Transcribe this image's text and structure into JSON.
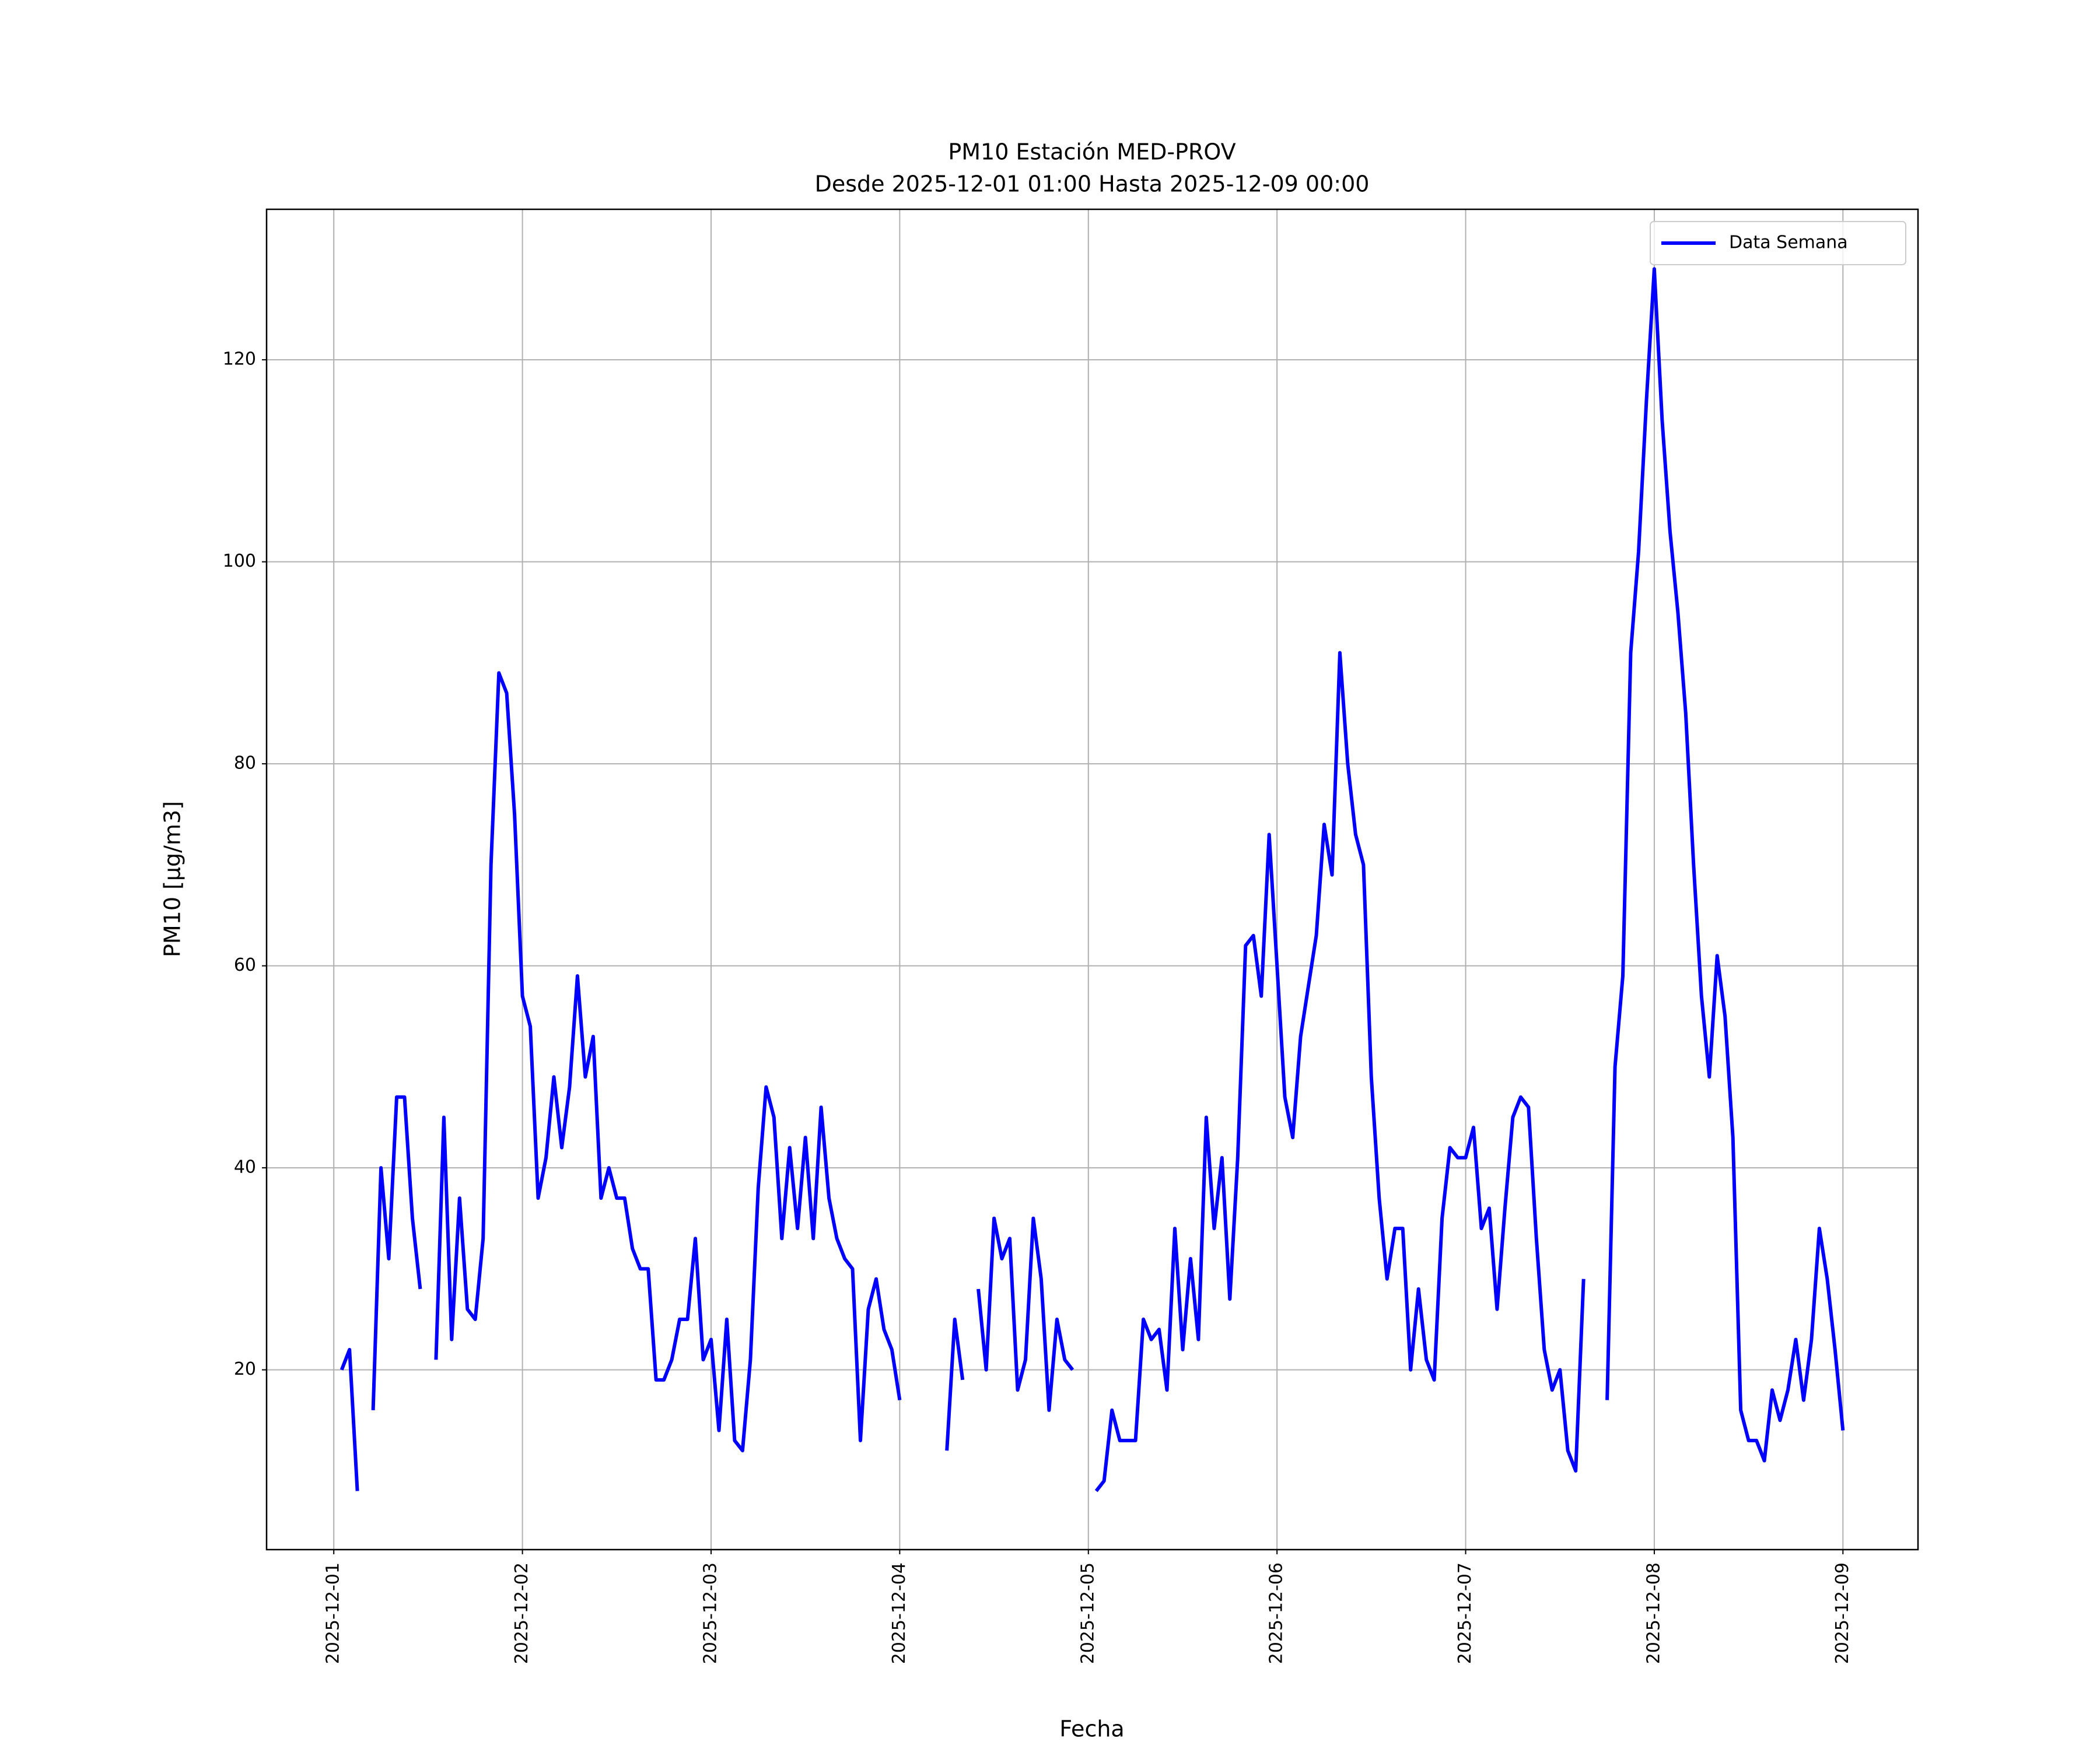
{
  "chart_data": {
    "type": "line",
    "title": "PM10 Estación MED-PROV",
    "subtitle": "Desde 2025-12-01 01:00 Hasta 2025-12-09 00:00",
    "xlabel": "Fecha",
    "ylabel": "PM10 [μg/m3]",
    "legend": "upper right",
    "grid": true,
    "xlim": [
      "2025-11-30 15:27",
      "2025-12-09 09:33"
    ],
    "xticks": [
      "2025-12-01",
      "2025-12-02",
      "2025-12-03",
      "2025-12-04",
      "2025-12-05",
      "2025-12-06",
      "2025-12-07",
      "2025-12-08",
      "2025-12-09"
    ],
    "ylim": [
      2.2,
      134.9
    ],
    "yticks": [
      20,
      40,
      60,
      80,
      100,
      120
    ],
    "x": [
      "2025-12-01 01:00",
      "2025-12-01 02:00",
      "2025-12-01 03:00",
      "2025-12-01 04:00",
      "2025-12-01 05:00",
      "2025-12-01 06:00",
      "2025-12-01 07:00",
      "2025-12-01 08:00",
      "2025-12-01 09:00",
      "2025-12-01 10:00",
      "2025-12-01 11:00",
      "2025-12-01 12:00",
      "2025-12-01 13:00",
      "2025-12-01 14:00",
      "2025-12-01 15:00",
      "2025-12-01 16:00",
      "2025-12-01 17:00",
      "2025-12-01 18:00",
      "2025-12-01 19:00",
      "2025-12-01 20:00",
      "2025-12-01 21:00",
      "2025-12-01 22:00",
      "2025-12-01 23:00",
      "2025-12-02 00:00",
      "2025-12-02 01:00",
      "2025-12-02 02:00",
      "2025-12-02 03:00",
      "2025-12-02 04:00",
      "2025-12-02 05:00",
      "2025-12-02 06:00",
      "2025-12-02 07:00",
      "2025-12-02 08:00",
      "2025-12-02 09:00",
      "2025-12-02 10:00",
      "2025-12-02 11:00",
      "2025-12-02 12:00",
      "2025-12-02 13:00",
      "2025-12-02 14:00",
      "2025-12-02 15:00",
      "2025-12-02 16:00",
      "2025-12-02 17:00",
      "2025-12-02 18:00",
      "2025-12-02 19:00",
      "2025-12-02 20:00",
      "2025-12-02 21:00",
      "2025-12-02 22:00",
      "2025-12-02 23:00",
      "2025-12-03 00:00",
      "2025-12-03 01:00",
      "2025-12-03 02:00",
      "2025-12-03 03:00",
      "2025-12-03 04:00",
      "2025-12-03 05:00",
      "2025-12-03 06:00",
      "2025-12-03 07:00",
      "2025-12-03 08:00",
      "2025-12-03 09:00",
      "2025-12-03 10:00",
      "2025-12-03 11:00",
      "2025-12-03 12:00",
      "2025-12-03 13:00",
      "2025-12-03 14:00",
      "2025-12-03 15:00",
      "2025-12-03 16:00",
      "2025-12-03 17:00",
      "2025-12-03 18:00",
      "2025-12-03 19:00",
      "2025-12-03 20:00",
      "2025-12-03 21:00",
      "2025-12-03 22:00",
      "2025-12-03 23:00",
      "2025-12-04 00:00",
      "2025-12-04 01:00",
      "2025-12-04 02:00",
      "2025-12-04 03:00",
      "2025-12-04 04:00",
      "2025-12-04 05:00",
      "2025-12-04 06:00",
      "2025-12-04 07:00",
      "2025-12-04 08:00",
      "2025-12-04 09:00",
      "2025-12-04 10:00",
      "2025-12-04 11:00",
      "2025-12-04 12:00",
      "2025-12-04 13:00",
      "2025-12-04 14:00",
      "2025-12-04 15:00",
      "2025-12-04 16:00",
      "2025-12-04 17:00",
      "2025-12-04 18:00",
      "2025-12-04 19:00",
      "2025-12-04 20:00",
      "2025-12-04 21:00",
      "2025-12-04 22:00",
      "2025-12-04 23:00",
      "2025-12-05 00:00",
      "2025-12-05 01:00",
      "2025-12-05 02:00",
      "2025-12-05 03:00",
      "2025-12-05 04:00",
      "2025-12-05 05:00",
      "2025-12-05 06:00",
      "2025-12-05 07:00",
      "2025-12-05 08:00",
      "2025-12-05 09:00",
      "2025-12-05 10:00",
      "2025-12-05 11:00",
      "2025-12-05 12:00",
      "2025-12-05 13:00",
      "2025-12-05 14:00",
      "2025-12-05 15:00",
      "2025-12-05 16:00",
      "2025-12-05 17:00",
      "2025-12-05 18:00",
      "2025-12-05 19:00",
      "2025-12-05 20:00",
      "2025-12-05 21:00",
      "2025-12-05 22:00",
      "2025-12-05 23:00",
      "2025-12-06 00:00",
      "2025-12-06 01:00",
      "2025-12-06 02:00",
      "2025-12-06 03:00",
      "2025-12-06 04:00",
      "2025-12-06 05:00",
      "2025-12-06 06:00",
      "2025-12-06 07:00",
      "2025-12-06 08:00",
      "2025-12-06 09:00",
      "2025-12-06 10:00",
      "2025-12-06 11:00",
      "2025-12-06 12:00",
      "2025-12-06 13:00",
      "2025-12-06 14:00",
      "2025-12-06 15:00",
      "2025-12-06 16:00",
      "2025-12-06 17:00",
      "2025-12-06 18:00",
      "2025-12-06 19:00",
      "2025-12-06 20:00",
      "2025-12-06 21:00",
      "2025-12-06 22:00",
      "2025-12-06 23:00",
      "2025-12-07 00:00",
      "2025-12-07 01:00",
      "2025-12-07 02:00",
      "2025-12-07 03:00",
      "2025-12-07 04:00",
      "2025-12-07 05:00",
      "2025-12-07 06:00",
      "2025-12-07 07:00",
      "2025-12-07 08:00",
      "2025-12-07 09:00",
      "2025-12-07 10:00",
      "2025-12-07 11:00",
      "2025-12-07 12:00",
      "2025-12-07 13:00",
      "2025-12-07 14:00",
      "2025-12-07 15:00",
      "2025-12-07 16:00",
      "2025-12-07 17:00",
      "2025-12-07 18:00",
      "2025-12-07 19:00",
      "2025-12-07 20:00",
      "2025-12-07 21:00",
      "2025-12-07 22:00",
      "2025-12-07 23:00",
      "2025-12-08 00:00",
      "2025-12-08 01:00",
      "2025-12-08 02:00",
      "2025-12-08 03:00",
      "2025-12-08 04:00",
      "2025-12-08 05:00",
      "2025-12-08 06:00",
      "2025-12-08 07:00",
      "2025-12-08 08:00",
      "2025-12-08 09:00",
      "2025-12-08 10:00",
      "2025-12-08 11:00",
      "2025-12-08 12:00",
      "2025-12-08 13:00",
      "2025-12-08 14:00",
      "2025-12-08 15:00",
      "2025-12-08 16:00",
      "2025-12-08 17:00",
      "2025-12-08 18:00",
      "2025-12-08 19:00",
      "2025-12-08 20:00",
      "2025-12-08 21:00",
      "2025-12-08 22:00",
      "2025-12-08 23:00",
      "2025-12-09 00:00"
    ],
    "series": [
      {
        "name": "Data Semana",
        "color": "#0000ff",
        "values": [
          20,
          22,
          8,
          null,
          16,
          40,
          31,
          47,
          47,
          35,
          28,
          null,
          21,
          45,
          23,
          37,
          26,
          25,
          33,
          70,
          89,
          87,
          75,
          57,
          54,
          37,
          41,
          49,
          42,
          48,
          59,
          49,
          53,
          37,
          40,
          37,
          37,
          32,
          30,
          30,
          19,
          19,
          21,
          25,
          25,
          33,
          21,
          23,
          14,
          25,
          13,
          12,
          21,
          38,
          48,
          45,
          33,
          42,
          34,
          43,
          33,
          46,
          37,
          33,
          31,
          30,
          13,
          26,
          29,
          24,
          22,
          17,
          null,
          null,
          null,
          null,
          null,
          12,
          25,
          19,
          null,
          28,
          20,
          35,
          31,
          33,
          18,
          21,
          35,
          29,
          16,
          25,
          21,
          20,
          null,
          null,
          8,
          9,
          16,
          13,
          13,
          13,
          25,
          23,
          24,
          18,
          34,
          22,
          31,
          23,
          45,
          34,
          41,
          27,
          41,
          62,
          63,
          57,
          73,
          60,
          47,
          43,
          53,
          58,
          63,
          74,
          69,
          91,
          80,
          73,
          70,
          49,
          37,
          29,
          34,
          34,
          20,
          28,
          21,
          19,
          35,
          42,
          41,
          41,
          44,
          34,
          36,
          26,
          36,
          45,
          47,
          46,
          33,
          22,
          18,
          20,
          12,
          10,
          29,
          null,
          null,
          17,
          50,
          59,
          91,
          101,
          116,
          129,
          114,
          103,
          95,
          85,
          70,
          57,
          49,
          61,
          55,
          43,
          16,
          13,
          13,
          11,
          18,
          15,
          18,
          23,
          17,
          23,
          34,
          29,
          22,
          14
        ]
      }
    ]
  }
}
